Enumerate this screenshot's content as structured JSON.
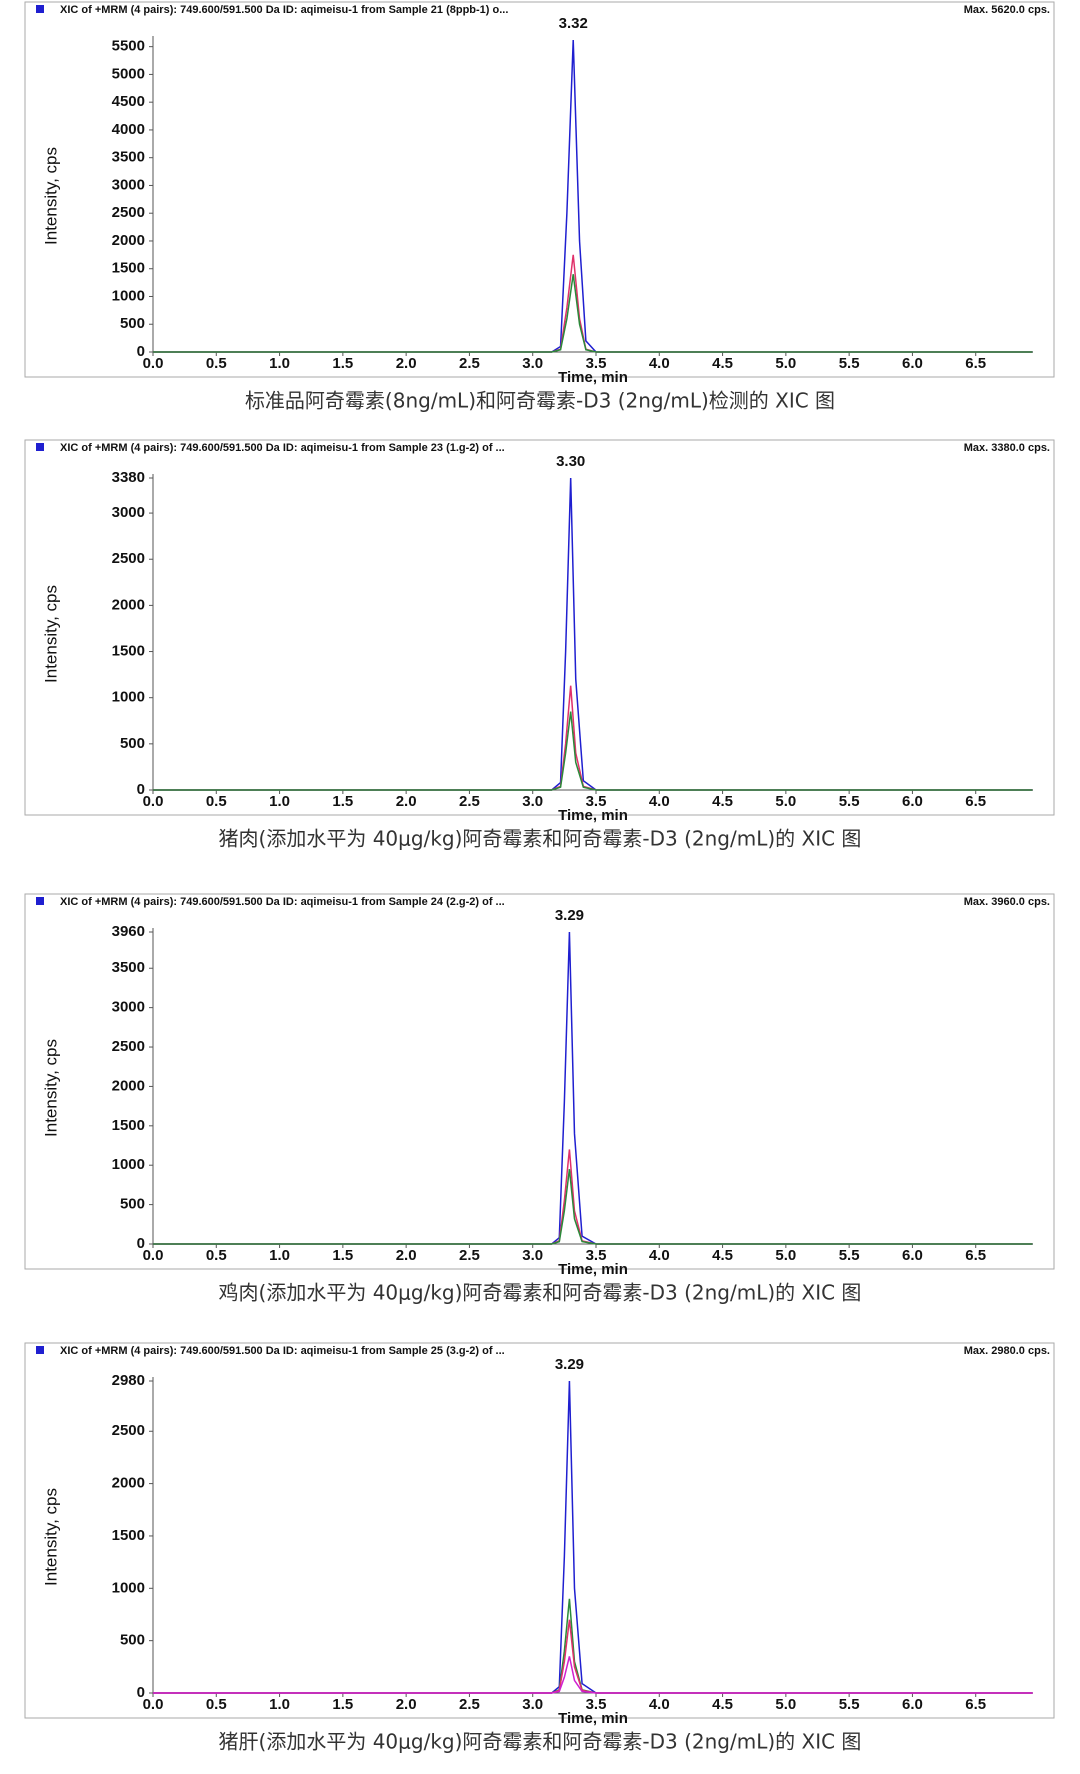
{
  "chart_data": [
    {
      "type": "line",
      "title": "XIC of +MRM (4 pairs): 749.600/591.500 Da ID: aqimeisu-1 from Sample 21 (8ppb-1) o...",
      "max_label": "Max. 5620.0 cps.",
      "peak_label": "3.32",
      "xlabel": "Time, min",
      "ylabel": "Intensity, cps",
      "caption": "标准品阿奇霉素(8ng/mL)和阿奇霉素-D3 (2ng/mL)检测的 XIC 图",
      "x": [
        0,
        3.15,
        3.22,
        3.27,
        3.32,
        3.37,
        3.42,
        3.5,
        6.95
      ],
      "series": [
        {
          "color": "#1f1fd0",
          "values": [
            0,
            0,
            100,
            2500,
            5620,
            2000,
            200,
            0,
            0
          ]
        },
        {
          "color": "#e0306a",
          "values": [
            0,
            0,
            50,
            800,
            1750,
            600,
            50,
            0,
            0
          ]
        },
        {
          "color": "#2a8a3a",
          "values": [
            0,
            0,
            40,
            600,
            1400,
            500,
            40,
            0,
            0
          ]
        }
      ],
      "xlim": [
        0,
        7
      ],
      "ylim": [
        0,
        5620
      ],
      "xticks": [
        {
          "value": 0,
          "label": "0.0"
        },
        {
          "value": 0.5,
          "label": "0.5"
        },
        {
          "value": 1,
          "label": "1.0"
        },
        {
          "value": 1.5,
          "label": "1.5"
        },
        {
          "value": 2,
          "label": "2.0"
        },
        {
          "value": 2.5,
          "label": "2.5"
        },
        {
          "value": 3,
          "label": "3.0"
        },
        {
          "value": 3.5,
          "label": "3.5"
        },
        {
          "value": 4,
          "label": "4.0"
        },
        {
          "value": 4.5,
          "label": "4.5"
        },
        {
          "value": 5,
          "label": "5.0"
        },
        {
          "value": 5.5,
          "label": "5.5"
        },
        {
          "value": 6,
          "label": "6.0"
        },
        {
          "value": 6.5,
          "label": "6.5"
        }
      ],
      "yticks": [
        0,
        500,
        1000,
        1500,
        2000,
        2500,
        3000,
        3500,
        4000,
        4500,
        5000,
        5500
      ]
    },
    {
      "type": "line",
      "title": "XIC of +MRM (4 pairs): 749.600/591.500 Da ID: aqimeisu-1 from Sample 23 (1.g-2) of ...",
      "max_label": "Max. 3380.0 cps.",
      "peak_label": "3.30",
      "xlabel": "Time, min",
      "ylabel": "Intensity, cps",
      "caption": "猪肉(添加水平为 40μg/kg)阿奇霉素和阿奇霉素-D3 (2ng/mL)的 XIC 图",
      "x": [
        0,
        3.15,
        3.22,
        3.26,
        3.3,
        3.34,
        3.4,
        3.5,
        6.95
      ],
      "series": [
        {
          "color": "#1f1fd0",
          "values": [
            0,
            0,
            80,
            1500,
            3380,
            1200,
            100,
            0,
            0
          ]
        },
        {
          "color": "#e0306a",
          "values": [
            0,
            0,
            40,
            500,
            1130,
            400,
            40,
            0,
            0
          ]
        },
        {
          "color": "#2a8a3a",
          "values": [
            0,
            0,
            30,
            400,
            850,
            300,
            30,
            0,
            0
          ]
        }
      ],
      "xlim": [
        0,
        7
      ],
      "ylim": [
        0,
        3380
      ],
      "xticks": [
        {
          "value": 0,
          "label": "0.0"
        },
        {
          "value": 0.5,
          "label": "0.5"
        },
        {
          "value": 1,
          "label": "1.0"
        },
        {
          "value": 1.5,
          "label": "1.5"
        },
        {
          "value": 2,
          "label": "2.0"
        },
        {
          "value": 2.5,
          "label": "2.5"
        },
        {
          "value": 3,
          "label": "3.0"
        },
        {
          "value": 3.5,
          "label": "3.5"
        },
        {
          "value": 4,
          "label": "4.0"
        },
        {
          "value": 4.5,
          "label": "4.5"
        },
        {
          "value": 5,
          "label": "5.0"
        },
        {
          "value": 5.5,
          "label": "5.5"
        },
        {
          "value": 6,
          "label": "6.0"
        },
        {
          "value": 6.5,
          "label": "6.5"
        }
      ],
      "yticks": [
        0,
        500,
        1000,
        1500,
        2000,
        2500,
        3000,
        3380
      ]
    },
    {
      "type": "line",
      "title": "XIC of +MRM (4 pairs): 749.600/591.500 Da ID: aqimeisu-1 from Sample 24 (2.g-2) of ...",
      "max_label": "Max. 3960.0 cps.",
      "peak_label": "3.29",
      "xlabel": "Time, min",
      "ylabel": "Intensity, cps",
      "caption": "鸡肉(添加水平为 40μg/kg)阿奇霉素和阿奇霉素-D3 (2ng/mL)的 XIC 图",
      "x": [
        0,
        3.15,
        3.21,
        3.25,
        3.29,
        3.33,
        3.39,
        3.5,
        6.95
      ],
      "series": [
        {
          "color": "#1f1fd0",
          "values": [
            0,
            0,
            80,
            1800,
            3960,
            1400,
            100,
            0,
            0
          ]
        },
        {
          "color": "#e0306a",
          "values": [
            0,
            0,
            40,
            550,
            1200,
            420,
            40,
            0,
            0
          ]
        },
        {
          "color": "#2a8a3a",
          "values": [
            0,
            0,
            30,
            420,
            950,
            320,
            30,
            0,
            0
          ]
        }
      ],
      "xlim": [
        0,
        7
      ],
      "ylim": [
        0,
        3960
      ],
      "xticks": [
        {
          "value": 0,
          "label": "0.0"
        },
        {
          "value": 0.5,
          "label": "0.5"
        },
        {
          "value": 1,
          "label": "1.0"
        },
        {
          "value": 1.5,
          "label": "1.5"
        },
        {
          "value": 2,
          "label": "2.0"
        },
        {
          "value": 2.5,
          "label": "2.5"
        },
        {
          "value": 3,
          "label": "3.0"
        },
        {
          "value": 3.5,
          "label": "3.5"
        },
        {
          "value": 4,
          "label": "4.0"
        },
        {
          "value": 4.5,
          "label": "4.5"
        },
        {
          "value": 5,
          "label": "5.0"
        },
        {
          "value": 5.5,
          "label": "5.5"
        },
        {
          "value": 6,
          "label": "6.0"
        },
        {
          "value": 6.5,
          "label": "6.5"
        }
      ],
      "yticks": [
        0,
        500,
        1000,
        1500,
        2000,
        2500,
        3000,
        3500,
        3960
      ]
    },
    {
      "type": "line",
      "title": "XIC of +MRM (4 pairs): 749.600/591.500 Da ID: aqimeisu-1 from Sample 25 (3.g-2) of ...",
      "max_label": "Max. 2980.0 cps.",
      "peak_label": "3.29",
      "xlabel": "Time, min",
      "ylabel": "Intensity, cps",
      "caption": "猪肝(添加水平为 40μg/kg)阿奇霉素和阿奇霉素-D3 (2ng/mL)的 XIC 图",
      "x": [
        0,
        3.15,
        3.21,
        3.25,
        3.29,
        3.33,
        3.39,
        3.5,
        6.95
      ],
      "series": [
        {
          "color": "#1f1fd0",
          "values": [
            0,
            0,
            60,
            1300,
            2980,
            1000,
            90,
            0,
            0
          ]
        },
        {
          "color": "#2a8a3a",
          "values": [
            0,
            0,
            30,
            400,
            900,
            300,
            30,
            0,
            0
          ]
        },
        {
          "color": "#e0306a",
          "values": [
            0,
            0,
            25,
            300,
            700,
            250,
            25,
            0,
            0
          ]
        },
        {
          "color": "#d020d0",
          "values": [
            0,
            0,
            15,
            150,
            350,
            120,
            15,
            0,
            0
          ]
        }
      ],
      "xlim": [
        0,
        7
      ],
      "ylim": [
        0,
        2980
      ],
      "xticks": [
        {
          "value": 0,
          "label": "0.0"
        },
        {
          "value": 0.5,
          "label": "0.5"
        },
        {
          "value": 1,
          "label": "1.0"
        },
        {
          "value": 1.5,
          "label": "1.5"
        },
        {
          "value": 2,
          "label": "2.0"
        },
        {
          "value": 2.5,
          "label": "2.5"
        },
        {
          "value": 3,
          "label": "3.0"
        },
        {
          "value": 3.5,
          "label": "3.5"
        },
        {
          "value": 4,
          "label": "4.0"
        },
        {
          "value": 4.5,
          "label": "4.5"
        },
        {
          "value": 5,
          "label": "5.0"
        },
        {
          "value": 5.5,
          "label": "5.5"
        },
        {
          "value": 6,
          "label": "6.0"
        },
        {
          "value": 6.5,
          "label": "6.5"
        }
      ],
      "yticks": [
        0,
        500,
        1000,
        1500,
        2000,
        2500,
        2980
      ]
    }
  ]
}
